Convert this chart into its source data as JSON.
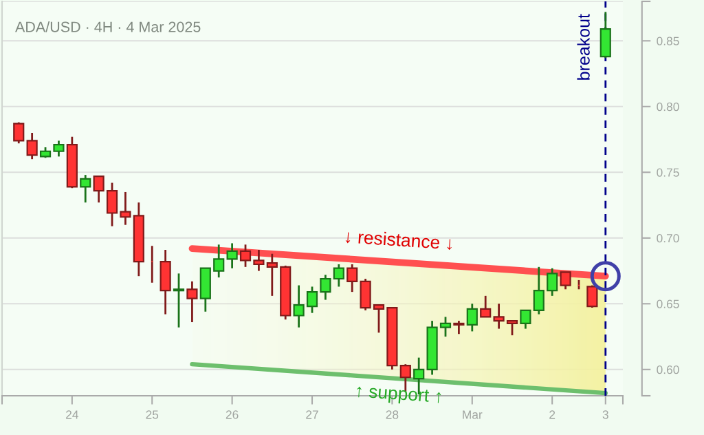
{
  "chart_data": {
    "type": "candlestick",
    "title": "ADA/USD · 4H · 4 Mar 2025",
    "categories": [
      null,
      null,
      null,
      null,
      "24",
      null,
      null,
      null,
      null,
      null,
      "25",
      null,
      null,
      null,
      null,
      null,
      "26",
      null,
      null,
      null,
      null,
      null,
      "27",
      null,
      null,
      null,
      null,
      null,
      "28",
      null,
      null,
      null,
      null,
      null,
      "Mar",
      null,
      null,
      null,
      null,
      null,
      "2",
      null,
      null,
      null,
      "3"
    ],
    "ohlc": [
      [
        0.787,
        0.788,
        0.772,
        0.774
      ],
      [
        0.774,
        0.78,
        0.76,
        0.763
      ],
      [
        0.762,
        0.769,
        0.761,
        0.766
      ],
      [
        0.766,
        0.774,
        0.762,
        0.771
      ],
      [
        0.771,
        0.777,
        0.738,
        0.739
      ],
      [
        0.739,
        0.748,
        0.727,
        0.745
      ],
      [
        0.747,
        0.747,
        0.727,
        0.736
      ],
      [
        0.736,
        0.742,
        0.709,
        0.719
      ],
      [
        0.72,
        0.735,
        0.71,
        0.716
      ],
      [
        0.717,
        0.727,
        0.671,
        0.682
      ],
      [
        0.682,
        0.694,
        0.666,
        0.682
      ],
      [
        0.682,
        0.691,
        0.642,
        0.66
      ],
      [
        0.66,
        0.673,
        0.632,
        0.661
      ],
      [
        0.661,
        0.667,
        0.636,
        0.654
      ],
      [
        0.654,
        0.677,
        0.644,
        0.677
      ],
      [
        0.675,
        0.695,
        0.67,
        0.684
      ],
      [
        0.684,
        0.696,
        0.677,
        0.69
      ],
      [
        0.69,
        0.695,
        0.678,
        0.683
      ],
      [
        0.683,
        0.691,
        0.675,
        0.68
      ],
      [
        0.681,
        0.688,
        0.656,
        0.678
      ],
      [
        0.678,
        0.679,
        0.638,
        0.641
      ],
      [
        0.641,
        0.664,
        0.632,
        0.649
      ],
      [
        0.648,
        0.663,
        0.643,
        0.659
      ],
      [
        0.659,
        0.672,
        0.653,
        0.669
      ],
      [
        0.669,
        0.68,
        0.663,
        0.677
      ],
      [
        0.677,
        0.68,
        0.659,
        0.667
      ],
      [
        0.667,
        0.669,
        0.645,
        0.647
      ],
      [
        0.649,
        0.649,
        0.628,
        0.646
      ],
      [
        0.647,
        0.647,
        0.6,
        0.603
      ],
      [
        0.603,
        0.604,
        0.583,
        0.594
      ],
      [
        0.593,
        0.609,
        0.581,
        0.6
      ],
      [
        0.6,
        0.637,
        0.596,
        0.632
      ],
      [
        0.632,
        0.64,
        0.625,
        0.635
      ],
      [
        0.635,
        0.637,
        0.627,
        0.634
      ],
      [
        0.634,
        0.65,
        0.629,
        0.646
      ],
      [
        0.646,
        0.656,
        0.64,
        0.64
      ],
      [
        0.64,
        0.65,
        0.631,
        0.637
      ],
      [
        0.637,
        0.637,
        0.626,
        0.635
      ],
      [
        0.635,
        0.645,
        0.631,
        0.645
      ],
      [
        0.645,
        0.678,
        0.642,
        0.66
      ],
      [
        0.66,
        0.677,
        0.656,
        0.673
      ],
      [
        0.674,
        0.674,
        0.661,
        0.664
      ],
      [
        0.664,
        0.668,
        0.661,
        0.664
      ],
      [
        0.663,
        0.664,
        0.647,
        0.648
      ],
      [
        0.838,
        0.872,
        0.837,
        0.859
      ]
    ],
    "colors": [
      "#ff3333",
      "#ff3333",
      "#33e633",
      "#33e633",
      "#ff3333",
      "#33e633",
      "#ff3333",
      "#ff3333",
      "#ff3333",
      "#ff3333",
      "#ff3333",
      "#ff3333",
      "#33e633",
      "#ff3333",
      "#33e633",
      "#33e633",
      "#33e633",
      "#ff3333",
      "#ff3333",
      "#ff3333",
      "#ff3333",
      "#33e633",
      "#33e633",
      "#33e633",
      "#33e633",
      "#ff3333",
      "#ff3333",
      "#ff3333",
      "#ff3333",
      "#ff3333",
      "#33e633",
      "#33e633",
      "#33e633",
      "#ff3333",
      "#33e633",
      "#ff3333",
      "#ff3333",
      "#ff3333",
      "#33e633",
      "#33e633",
      "#33e633",
      "#ff3333",
      "#ff3333",
      "#ff3333",
      "#33e633"
    ],
    "series": [
      {
        "type": "line",
        "name": "↓ resistance ↓",
        "color": "#ff5050",
        "values": [
          null,
          null,
          null,
          null,
          null,
          null,
          null,
          null,
          null,
          null,
          null,
          null,
          null,
          0.692,
          null,
          null,
          null,
          null,
          null,
          null,
          null,
          null,
          null,
          null,
          null,
          null,
          null,
          null,
          null,
          null,
          null,
          null,
          null,
          null,
          null,
          null,
          null,
          null,
          null,
          null,
          null,
          null,
          null,
          null,
          0.671
        ]
      },
      {
        "type": "line",
        "name": "↑ support ↑",
        "color": "#6dbf6d",
        "values": [
          null,
          null,
          null,
          null,
          null,
          null,
          null,
          null,
          null,
          null,
          null,
          null,
          null,
          0.604,
          null,
          null,
          null,
          null,
          null,
          null,
          null,
          null,
          null,
          null,
          null,
          null,
          null,
          null,
          null,
          null,
          null,
          null,
          null,
          null,
          null,
          null,
          null,
          null,
          null,
          null,
          null,
          null,
          null,
          null,
          0.582
        ]
      },
      {
        "type": "scatter",
        "color": "#4040a8",
        "marker": "circle",
        "values": [
          null,
          null,
          null,
          null,
          null,
          null,
          null,
          null,
          null,
          null,
          null,
          null,
          null,
          null,
          null,
          null,
          null,
          null,
          null,
          null,
          null,
          null,
          null,
          null,
          null,
          null,
          null,
          null,
          null,
          null,
          null,
          null,
          null,
          null,
          null,
          null,
          null,
          null,
          null,
          null,
          null,
          null,
          null,
          null,
          0.671
        ]
      }
    ],
    "ref_lines": [
      {
        "axis": "x",
        "value": "3",
        "label": "breakout",
        "color": "#00008b",
        "line_style": "dashed"
      }
    ],
    "ylim": [
      0.58,
      0.88
    ],
    "yticks": [
      {
        "value": 0.58,
        "label": null
      },
      {
        "value": 0.6,
        "label": "0.60"
      },
      0.65,
      {
        "value": 0.7,
        "label": "0.70"
      },
      0.75,
      {
        "value": 0.8,
        "label": "0.80"
      },
      0.85,
      {
        "value": 0.88,
        "label": null
      }
    ],
    "grid": "y"
  }
}
